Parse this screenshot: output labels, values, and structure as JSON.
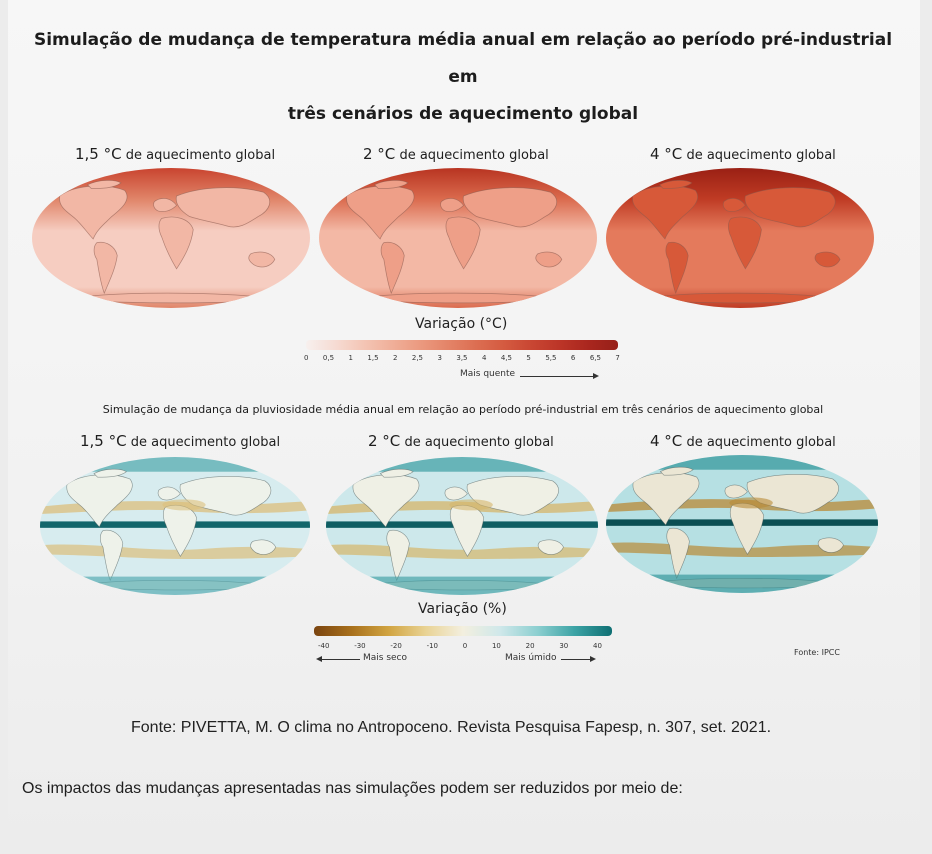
{
  "title_line1": "Simulação de mudança de temperatura média anual em relação ao período pré-industrial em",
  "title_line2": "três cenários de aquecimento global",
  "scenarios": [
    {
      "value": "1,5 °C",
      "suffix": "de aquecimento global"
    },
    {
      "value": "2 °C",
      "suffix": "de aquecimento global"
    },
    {
      "value": "4 °C",
      "suffix": "de aquecimento global"
    }
  ],
  "temp_legend": {
    "title": "Variação (°C)",
    "ticks": [
      "0",
      "0,5",
      "1",
      "1,5",
      "2",
      "2,5",
      "3",
      "3,5",
      "4",
      "4,5",
      "5",
      "5,5",
      "6",
      "6,5",
      "7"
    ],
    "hint": "Mais quente",
    "colors": [
      "#f7f0ee",
      "#f6dcd4",
      "#f4c6b6",
      "#f0b09a",
      "#eb9a80",
      "#e48468",
      "#dc6e52",
      "#d45a40",
      "#c84532",
      "#bb3427",
      "#a9261e",
      "#962019"
    ]
  },
  "precip_title": "Simulação de mudança da pluviosidade média anual em relação ao período pré-industrial em três cenários de aquecimento global",
  "precip_legend": {
    "title": "Variação (%)",
    "ticks": [
      "-40",
      "-30",
      "-20",
      "-10",
      "0",
      "10",
      "20",
      "30",
      "40"
    ],
    "hint_dry": "Mais seco",
    "hint_wet": "Mais úmido",
    "colors": [
      "#7a4410",
      "#a8701c",
      "#d1a441",
      "#e9d394",
      "#f3efdf",
      "#cfe8ea",
      "#8ccfd0",
      "#3ca3a5",
      "#0f6f73"
    ]
  },
  "fonte_ipcc": "Fonte: IPCC",
  "source": "Fonte: PIVETTA, M. O clima no Antropoceno. Revista Pesquisa Fapesp, n. 307, set. 2021.",
  "question": "Os impactos das mudanças apresentadas nas simulações podem ser reduzidos por meio de:",
  "temp_maps": [
    {
      "ocean": "#f6cdc1",
      "land": "#f2b7a5",
      "arctic": "#c9442f",
      "accent": "#e08468"
    },
    {
      "ocean": "#f3b8a5",
      "land": "#ee9f88",
      "arctic": "#b83421",
      "accent": "#da6a4d"
    },
    {
      "ocean": "#e47a5c",
      "land": "#d75939",
      "arctic": "#9a2014",
      "accent": "#bf3b24"
    }
  ],
  "precip_maps": [
    {
      "ocean": "#d7ecef",
      "land": "#eef2ea",
      "dry": "#dcbf7c",
      "wet": "#4fa8ad",
      "deep": "#13666b"
    },
    {
      "ocean": "#cde8eb",
      "land": "#eff0e5",
      "dry": "#d6b66a",
      "wet": "#3c9ea3",
      "deep": "#0f5e63"
    },
    {
      "ocean": "#b6e0e3",
      "land": "#ebe6d4",
      "dry": "#b98a36",
      "wet": "#2f9498",
      "deep": "#0b4f53"
    }
  ]
}
